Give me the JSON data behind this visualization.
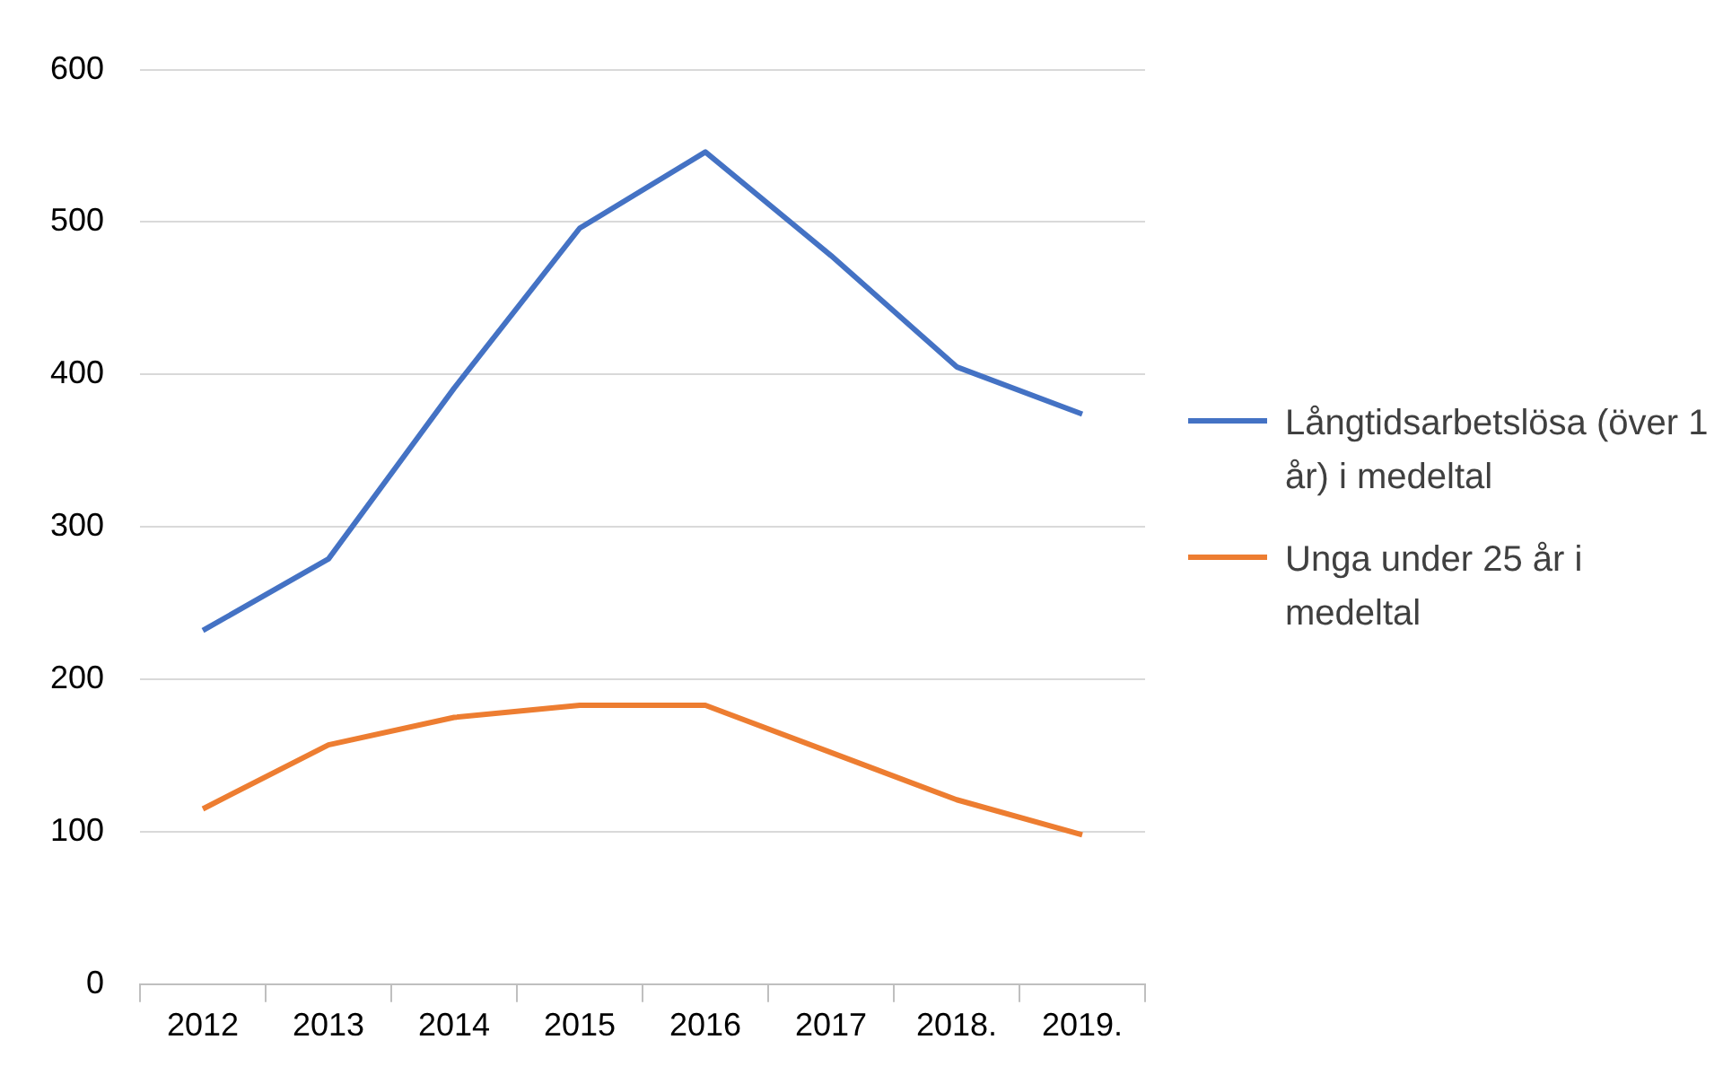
{
  "chart_data": {
    "type": "line",
    "categories": [
      "2012",
      "2013",
      "2014",
      "2015",
      "2016",
      "2017",
      "2018.",
      "2019."
    ],
    "series": [
      {
        "name": "Långtidsarbetslösa (över 1 år) i medeltal",
        "color": "#4472c4",
        "values": [
          232,
          279,
          391,
          496,
          546,
          478,
          405,
          374
        ]
      },
      {
        "name": "Unga under 25 år i medeltal",
        "color": "#ed7d31",
        "values": [
          115,
          157,
          175,
          183,
          183,
          152,
          121,
          98
        ]
      }
    ],
    "ylim": [
      0,
      600
    ],
    "yticks": [
      0,
      100,
      200,
      300,
      400,
      500,
      600
    ],
    "grid": "y",
    "legend": "right",
    "marker": "none",
    "line_style": "solid"
  }
}
